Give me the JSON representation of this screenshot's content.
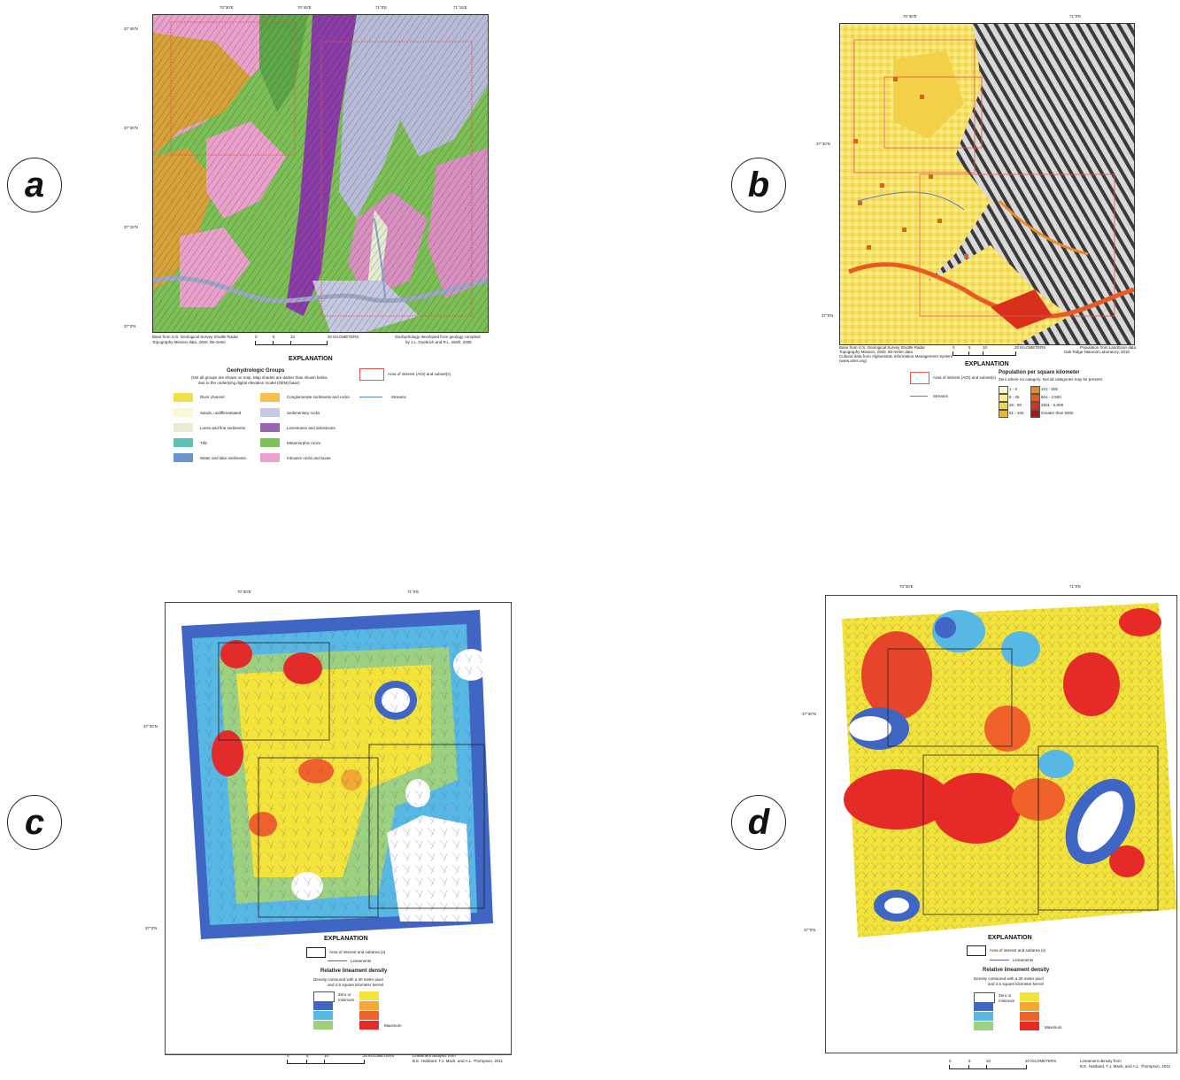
{
  "panels": {
    "a": {
      "letter": "a",
      "lon_ticks": [
        "70°30'E",
        "70°45'E",
        "71°0'E",
        "71°15'E"
      ],
      "lat_ticks": [
        "37°45'N",
        "37°30'N",
        "37°15'N",
        "37°0'N"
      ],
      "base_text": [
        "Base from U.S. Geological Survey Shuttle Radar",
        "Topography Mission data, 2000, 85-meter"
      ],
      "scale_label": "20 KILOMETERS",
      "scale_ticks": [
        "0",
        "5",
        "10"
      ],
      "credit_text": [
        "Geohydrology developed from geology compiled",
        "by J.L. Doebrich and R.L. Wahl, 2006"
      ],
      "explanation_title": "EXPLANATION",
      "groups_title": "Geohydrologic Groups",
      "groups_note": [
        "(Not all groups are shown on map. Map shades are darker than shown below",
        "due to the underlying digital elevation model (DEM) base)"
      ],
      "legend": [
        {
          "label": "River channel",
          "color": "#f0e04a"
        },
        {
          "label": "Sands, undifferentiated",
          "color": "#faf6d8"
        },
        {
          "label": "Loess and fine sediments",
          "color": "#e6ecd0"
        },
        {
          "label": "Tills",
          "color": "#5cc3b4"
        },
        {
          "label": "Water and lake sediments",
          "color": "#6a94d0"
        },
        {
          "label": "Conglomerate sediments and rocks",
          "color": "#f5c24c"
        },
        {
          "label": "Sedimentary rocks",
          "color": "#c7c9e2"
        },
        {
          "label": "Limestones and dolostones",
          "color": "#9a63b0"
        },
        {
          "label": "Metamorphic rocks",
          "color": "#7cc057"
        },
        {
          "label": "Intrusive rocks and lavas",
          "color": "#eaa1cc"
        }
      ],
      "aoi_label": "Area of interest (AOI) and subset(s)",
      "streams_label": "Streams"
    },
    "b": {
      "letter": "b",
      "lon_ticks": [
        "70°30'E",
        "71°0'E"
      ],
      "lat_ticks": [
        "37°30'N",
        "37°0'N"
      ],
      "base_text": [
        "Base from U.S. Geological Survey Shuttle Radar",
        "Topography Mission, 2000, 85-meter data",
        "Cultural data from Afghanistan Information Management System",
        "(www.aims.org)"
      ],
      "scale_label": "20 KILOMETERS",
      "scale_ticks": [
        "0",
        "5",
        "10"
      ],
      "credit_text": [
        "Population from LandScan data",
        "Oak Ridge National Laboratory, 2010"
      ],
      "explanation_title": "EXPLANATION",
      "aoi_label": "Area of interest (AOI) and subset(s)",
      "streams_label": "Streams",
      "pop_title": "Population per square kilometer",
      "pop_note": "Zero where no category. Not all categories may be present.",
      "pop_legend": [
        {
          "label": "1 - 5",
          "color": "#fdf7d0"
        },
        {
          "label": "6 - 25",
          "color": "#fbed88"
        },
        {
          "label": "26 - 50",
          "color": "#f6d640"
        },
        {
          "label": "51 - 100",
          "color": "#f0b530"
        },
        {
          "label": "101 - 500",
          "color": "#ee8a26"
        },
        {
          "label": "501 - 2,500",
          "color": "#e85b20"
        },
        {
          "label": "2501 - 5,000",
          "color": "#d8301c"
        },
        {
          "label": "Greater than 5000",
          "color": "#a01818"
        }
      ]
    },
    "c": {
      "letter": "c",
      "lon_ticks": [
        "70°30'E",
        "71°0'E"
      ],
      "lat_ticks": [
        "37°30'N",
        "37°0'N"
      ],
      "explanation_title": "EXPLANATION",
      "aoi_label": "Area of interest and subarea (s)",
      "lineaments_label": "Lineaments",
      "density_title": "Relative lineament density",
      "density_note": [
        "Density contoured with a 30 meter pixel",
        "and 4.5 square kilometer kernel"
      ],
      "zero_label": [
        "Zero or",
        "minimum"
      ],
      "max_label": "Maximum",
      "scale_label": "20 KILOMETERS",
      "scale_ticks": [
        "0",
        "5",
        "10"
      ],
      "credit_text": [
        "Lineament analysis from",
        "B.E. Hubbard, T.J. Mack, and A.L. Thompson, 2011"
      ]
    },
    "d": {
      "letter": "d",
      "lon_ticks": [
        "70°30'E",
        "71°0'E"
      ],
      "lat_ticks": [
        "37°30'N",
        "37°0'N"
      ],
      "explanation_title": "EXPLANATION",
      "aoi_label": "Area of interest and subarea (s)",
      "lineaments_label": "Lineaments",
      "density_title": "Relative lineament density",
      "density_note": [
        "Density contoured with a 30 meter pixel",
        "and 4.5 square kilometer kernel"
      ],
      "zero_label": [
        "Zero or",
        "minimum"
      ],
      "max_label": "Maximum",
      "scale_label": "20 KILOMETERS",
      "scale_ticks": [
        "0",
        "5",
        "10"
      ],
      "credit_text": [
        "Lineament density from",
        "B.E. Hubbard, T.J. Mack, and A.L. Thompson, 2011"
      ]
    }
  },
  "density_ramp": {
    "low": [
      "#ffffff",
      "#3f66c4",
      "#58b8e4",
      "#9cd180"
    ],
    "high": [
      "#f4e43a",
      "#f3a834",
      "#f0622a",
      "#e52a28"
    ]
  },
  "colors": {
    "aoi_box": "#e8534c",
    "streams": "#5a7fc6",
    "lineaments": "#6a55b8"
  }
}
